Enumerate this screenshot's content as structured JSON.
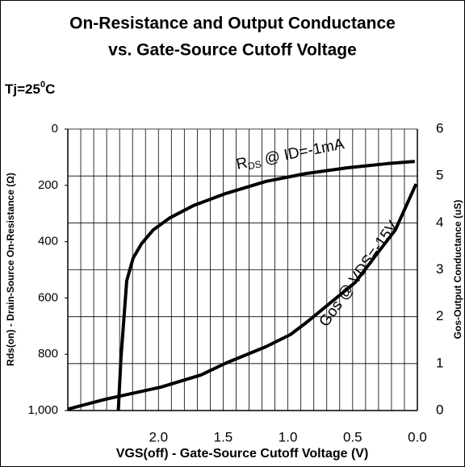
{
  "chart_data": {
    "type": "line",
    "title": [
      "On-Resistance and Output Conductance",
      "vs. Gate-Source Cutoff Voltage"
    ],
    "subtitle": [
      "Tj=25",
      "0",
      "C"
    ],
    "xlabel": "VGS(off) - Gate-Source Cutoff Voltage (V)",
    "ylabel": "Rds(on) - Drain-Source On-Resistance (Ω)",
    "y2label": "Gos-Output Conductance (uS)",
    "xlim": [
      2.7,
      0.0
    ],
    "xticks": [
      {
        "value": 2.0,
        "label": "2.0"
      },
      {
        "value": 1.5,
        "label": "1.5"
      },
      {
        "value": 1.0,
        "label": "1.0"
      },
      {
        "value": 0.5,
        "label": "0.5"
      },
      {
        "value": 0.0,
        "label": "0.0"
      }
    ],
    "xgrid_step": 0.1,
    "ylim": [
      0,
      1000
    ],
    "yticks": [
      0,
      200,
      400,
      600,
      800,
      {
        "value": 1000,
        "label": "1,000"
      }
    ],
    "y2lim": [
      0,
      6
    ],
    "y2ticks": [
      0,
      1,
      2,
      3,
      4,
      5,
      6
    ],
    "grid": true,
    "series": [
      {
        "annotation": [
          "R",
          "DS",
          " @ ID=-1mA"
        ],
        "color": "#000000",
        "x": [
          2.31,
          2.29,
          2.245,
          2.195,
          2.13,
          2.04,
          1.91,
          1.73,
          1.48,
          1.17,
          0.86,
          0.545,
          0.235,
          0.02
        ],
        "values": [
          1000,
          817,
          539,
          458,
          407,
          358,
          315,
          272,
          229,
          186,
          158,
          138,
          123,
          115
        ]
      },
      {
        "annotation": [
          "Gos @ VDS=-15V"
        ],
        "color": "#000000",
        "axis": "y2",
        "x": [
          2.7,
          2.41,
          1.98,
          1.67,
          1.48,
          1.17,
          0.98,
          0.86,
          0.67,
          0.48,
          0.29,
          0.17,
          0.01
        ],
        "values": [
          0.03,
          0.24,
          0.5,
          0.76,
          1.01,
          1.36,
          1.62,
          1.87,
          2.3,
          2.73,
          3.42,
          3.85,
          4.83
        ]
      }
    ]
  }
}
